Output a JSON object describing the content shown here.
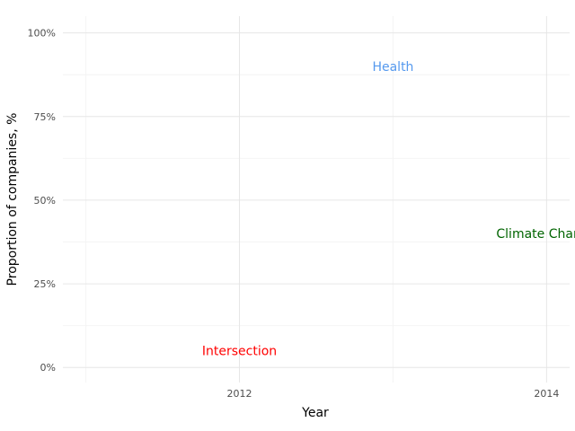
{
  "chart_data": {
    "type": "scatter",
    "title": "",
    "xlabel": "Year",
    "ylabel": "Proportion of companies, %",
    "xlim": [
      2010.85,
      2014.15
    ],
    "ylim": [
      -0.045,
      1.05
    ],
    "x_ticks": [
      {
        "value": 2012,
        "label": "2012"
      },
      {
        "value": 2014,
        "label": "2014"
      }
    ],
    "x_minor_ticks": [
      2011,
      2013
    ],
    "y_ticks": [
      {
        "value": 0,
        "label": "0%"
      },
      {
        "value": 0.25,
        "label": "25%"
      },
      {
        "value": 0.5,
        "label": "50%"
      },
      {
        "value": 0.75,
        "label": "75%"
      },
      {
        "value": 1,
        "label": "100%"
      }
    ],
    "y_minor_ticks": [
      0.125,
      0.375,
      0.625,
      0.875
    ],
    "grid": true,
    "legend": "none",
    "annotations": [
      {
        "text": "Health",
        "x": 2013,
        "y": 0.9,
        "color": "#5599EE"
      },
      {
        "text": "Climate Change",
        "x": 2014,
        "y": 0.4,
        "color": "#006400"
      },
      {
        "text": "Intersection",
        "x": 2012,
        "y": 0.05,
        "color": "#FF0000"
      }
    ],
    "series": []
  }
}
